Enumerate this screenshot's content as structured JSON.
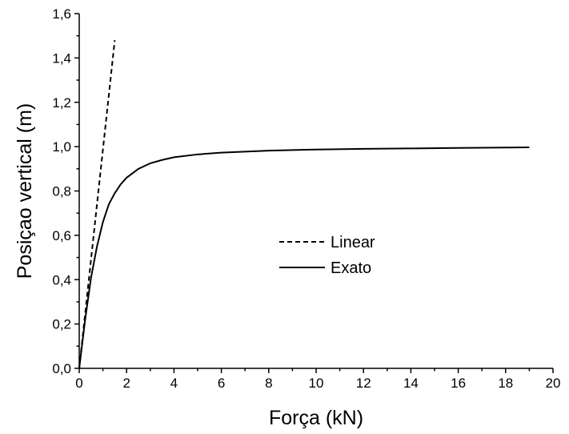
{
  "chart_data": {
    "type": "line",
    "xlabel": "Força (kN)",
    "ylabel": "Posiçao vertical (m)",
    "xlim": [
      0,
      20
    ],
    "ylim": [
      0,
      1.6
    ],
    "x_ticks": [
      "0",
      "2",
      "4",
      "6",
      "8",
      "10",
      "12",
      "14",
      "16",
      "18",
      "20"
    ],
    "y_ticks": [
      "0,0",
      "0,2",
      "0,4",
      "0,6",
      "0,8",
      "1,0",
      "1,2",
      "1,4",
      "1,6"
    ],
    "x_tick_values": [
      0,
      2,
      4,
      6,
      8,
      10,
      12,
      14,
      16,
      18,
      20
    ],
    "y_tick_values": [
      0,
      0.2,
      0.4,
      0.6,
      0.8,
      1.0,
      1.2,
      1.4,
      1.6
    ],
    "grid": false,
    "legend_position": "center",
    "series": [
      {
        "name": "Linear",
        "style": "dashed",
        "color": "#000000",
        "x": [
          0,
          1.5
        ],
        "y": [
          0,
          1.48
        ]
      },
      {
        "name": "Exato",
        "style": "solid",
        "color": "#000000",
        "x": [
          0,
          0.25,
          0.5,
          0.75,
          1.0,
          1.25,
          1.5,
          1.75,
          2.0,
          2.5,
          3.0,
          3.5,
          4.0,
          5.0,
          6.0,
          8.0,
          10.0,
          12.0,
          14.0,
          16.0,
          18.0,
          19.0
        ],
        "y": [
          0,
          0.22,
          0.41,
          0.55,
          0.66,
          0.74,
          0.79,
          0.83,
          0.86,
          0.9,
          0.925,
          0.94,
          0.952,
          0.965,
          0.973,
          0.982,
          0.987,
          0.99,
          0.992,
          0.994,
          0.996,
          0.997
        ]
      }
    ]
  }
}
